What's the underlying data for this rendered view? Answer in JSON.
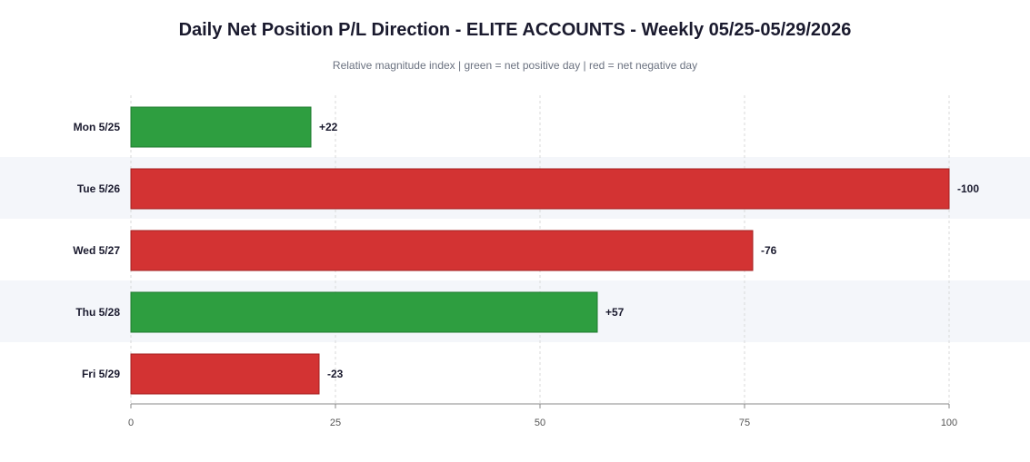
{
  "colors": {
    "positive": "#2e9e40",
    "positive_stroke": "#1e7a2e",
    "negative": "#d33333",
    "negative_stroke": "#a31f1f",
    "band": "#f4f6fa",
    "grid": "#d9d9d9",
    "axis": "#8a8a8a"
  },
  "chart_data": {
    "type": "bar",
    "orientation": "horizontal",
    "title": "Daily Net Position P/L Direction - ELITE ACCOUNTS - Weekly 05/25-05/29/2026",
    "subtitle": "Relative magnitude index  |  green = net positive day  |  red = net negative day",
    "xlabel": "",
    "ylabel": "",
    "xlim": [
      0,
      100
    ],
    "xticks": [
      0,
      25,
      50,
      75,
      100
    ],
    "grid": "vertical, dashed",
    "categories": [
      "Mon 5/25",
      "Tue 5/26",
      "Wed 5/27",
      "Thu 5/28",
      "Fri 5/29"
    ],
    "values": [
      22,
      -100,
      -76,
      57,
      -23
    ],
    "value_labels": [
      "+22",
      "-100",
      "-76",
      "+57",
      "-23"
    ],
    "bar_length_encoding": "absolute value"
  }
}
